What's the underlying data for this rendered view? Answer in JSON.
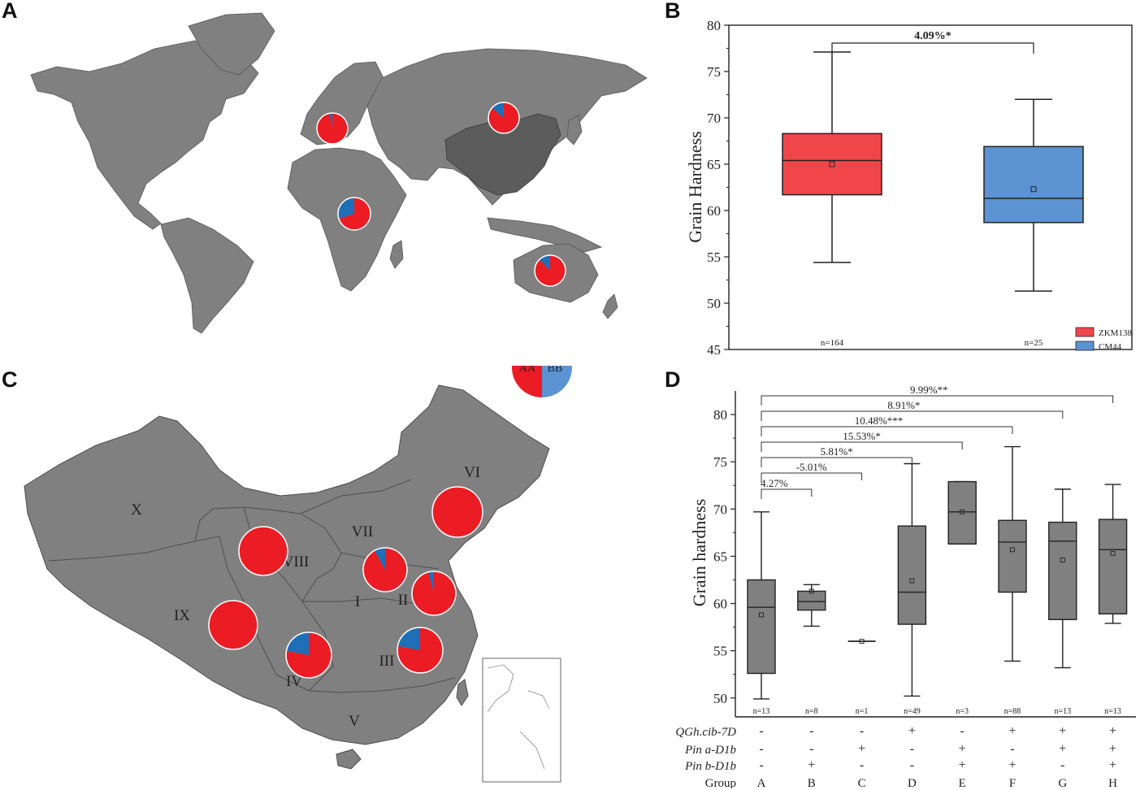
{
  "panels": {
    "A": "A",
    "B": "B",
    "C": "C",
    "D": "D"
  },
  "colors": {
    "aa": "#ec1c24",
    "bb": "#1e6fb8",
    "bb_light": "#5b93d3",
    "land": "#808080",
    "china": "#5c5c5c",
    "box_gray": "#808080",
    "box_red": "#f0464a"
  },
  "legend_pie": {
    "aa_label": "AA",
    "bb_label": "BB"
  },
  "world_map": {
    "pies": [
      {
        "region": "Europe",
        "bb_fraction": 0.03
      },
      {
        "region": "Russia/Central Asia",
        "bb_fraction": 0.14
      },
      {
        "region": "Africa",
        "bb_fraction": 0.3
      },
      {
        "region": "Australia",
        "bb_fraction": 0.12
      }
    ]
  },
  "china_map": {
    "regions": [
      {
        "label": "I",
        "bb_fraction": 0.08
      },
      {
        "label": "II",
        "bb_fraction": 0.04
      },
      {
        "label": "III",
        "bb_fraction": 0.22
      },
      {
        "label": "IV",
        "bb_fraction": 0.22
      },
      {
        "label": "V"
      },
      {
        "label": "VI",
        "bb_fraction": 0.0
      },
      {
        "label": "VII"
      },
      {
        "label": "VIII",
        "bb_fraction": 0.0
      },
      {
        "label": "IX",
        "bb_fraction": 0.0
      },
      {
        "label": "X"
      }
    ]
  },
  "chart_data": [
    {
      "type": "box",
      "panel": "B",
      "ylabel": "Grain Hardness",
      "ylim": [
        45,
        80
      ],
      "yticks": [
        45,
        50,
        55,
        60,
        65,
        70,
        75,
        80
      ],
      "significance": "4.09%*",
      "series": [
        {
          "name": "ZKM138",
          "n": "n=164",
          "min": 54.4,
          "q1": 61.7,
          "median": 65.4,
          "q3": 68.3,
          "max": 77.1,
          "mean": 65.0,
          "color": "#f0464a"
        },
        {
          "name": "CM44",
          "n": "n=25",
          "min": 51.3,
          "q1": 58.7,
          "median": 61.3,
          "q3": 66.9,
          "max": 72.0,
          "mean": 62.3,
          "color": "#5b93d3"
        }
      ]
    },
    {
      "type": "box",
      "panel": "D",
      "ylabel": "Grain hardness",
      "ylim": [
        48,
        82.5
      ],
      "yticks": [
        50,
        55,
        60,
        65,
        70,
        75,
        80
      ],
      "row_labels": [
        "QGh.cib-7D",
        "Pin a-D1b",
        "Pin b-D1b",
        "Group"
      ],
      "comparisons": [
        {
          "to": "H",
          "label": "9.99%**"
        },
        {
          "to": "G",
          "label": "8.91%*"
        },
        {
          "to": "F",
          "label": "10.48%***"
        },
        {
          "to": "E",
          "label": "15.53%*"
        },
        {
          "to": "D",
          "label": "5.81%*"
        },
        {
          "to": "C",
          "label": "-5.01%"
        },
        {
          "to": "B",
          "label": "4.27%"
        }
      ],
      "groups": [
        {
          "group": "A",
          "n": "n=13",
          "qgh": "-",
          "pina": "-",
          "pinb": "-",
          "min": 49.9,
          "q1": 52.6,
          "median": 59.6,
          "q3": 62.5,
          "max": 69.7,
          "mean": 58.8
        },
        {
          "group": "B",
          "n": "n=8",
          "qgh": "-",
          "pina": "-",
          "pinb": "+",
          "min": 57.6,
          "q1": 59.3,
          "median": 60.2,
          "q3": 61.3,
          "max": 62.0,
          "mean": 61.3
        },
        {
          "group": "C",
          "n": "n=1",
          "qgh": "-",
          "pina": "+",
          "pinb": "-",
          "min": 56.0,
          "q1": 56.0,
          "median": 56.0,
          "q3": 56.0,
          "max": 56.0,
          "mean": 56.0
        },
        {
          "group": "D",
          "n": "n=49",
          "qgh": "+",
          "pina": "-",
          "pinb": "-",
          "min": 50.2,
          "q1": 57.8,
          "median": 61.2,
          "q3": 68.2,
          "max": 74.8,
          "mean": 62.4
        },
        {
          "group": "E",
          "n": "n=3",
          "qgh": "-",
          "pina": "+",
          "pinb": "+",
          "min": 66.3,
          "q1": 66.3,
          "median": 69.7,
          "q3": 72.9,
          "max": 72.9,
          "mean": 69.7
        },
        {
          "group": "F",
          "n": "n=88",
          "qgh": "+",
          "pina": "-",
          "pinb": "+",
          "min": 53.9,
          "q1": 61.2,
          "median": 66.5,
          "q3": 68.8,
          "max": 76.6,
          "mean": 65.7
        },
        {
          "group": "G",
          "n": "n=13",
          "qgh": "+",
          "pina": "+",
          "pinb": "-",
          "min": 53.2,
          "q1": 58.3,
          "median": 66.6,
          "q3": 68.6,
          "max": 72.1,
          "mean": 64.6
        },
        {
          "group": "H",
          "n": "n=13",
          "qgh": "+",
          "pina": "+",
          "pinb": "+",
          "min": 57.9,
          "q1": 58.9,
          "median": 65.7,
          "q3": 68.9,
          "max": 72.6,
          "mean": 65.3
        }
      ]
    }
  ]
}
